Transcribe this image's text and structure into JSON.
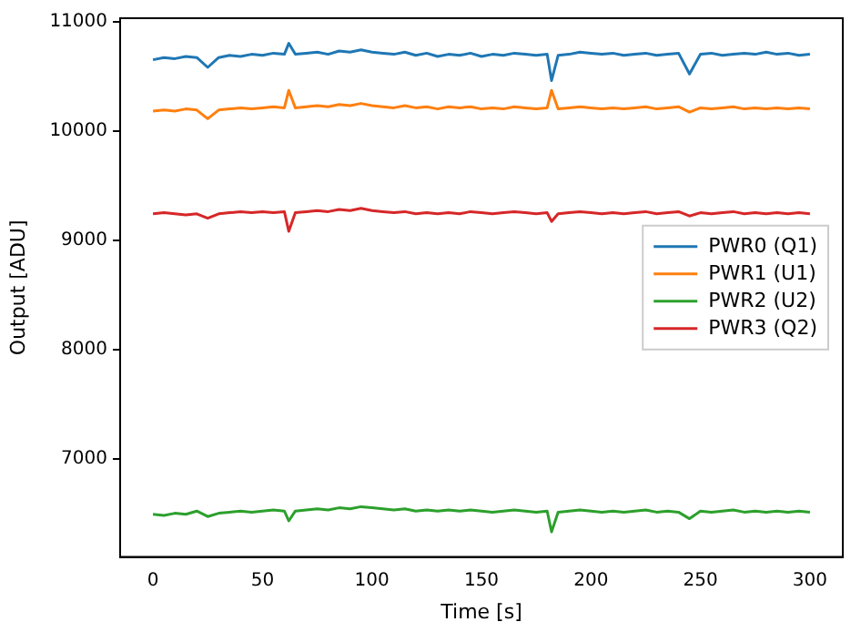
{
  "chart_data": {
    "type": "line",
    "xlabel": "Time [s]",
    "ylabel": "Output [ADU]",
    "x": [
      0,
      5,
      10,
      15,
      20,
      25,
      30,
      35,
      40,
      45,
      50,
      55,
      60,
      62,
      65,
      70,
      75,
      80,
      85,
      90,
      95,
      100,
      105,
      110,
      115,
      120,
      125,
      130,
      135,
      140,
      145,
      150,
      155,
      160,
      165,
      170,
      175,
      180,
      182,
      185,
      190,
      195,
      200,
      205,
      210,
      215,
      220,
      225,
      230,
      235,
      240,
      245,
      250,
      255,
      260,
      265,
      270,
      275,
      280,
      285,
      290,
      295,
      300
    ],
    "series": [
      {
        "name": "PWR0 (Q1)",
        "color": "#1f77b4",
        "values": [
          10650,
          10670,
          10660,
          10680,
          10670,
          10580,
          10670,
          10690,
          10680,
          10700,
          10690,
          10710,
          10700,
          10800,
          10700,
          10710,
          10720,
          10700,
          10730,
          10720,
          10740,
          10720,
          10710,
          10700,
          10720,
          10690,
          10710,
          10680,
          10700,
          10690,
          10710,
          10680,
          10700,
          10690,
          10710,
          10700,
          10690,
          10700,
          10460,
          10690,
          10700,
          10720,
          10710,
          10700,
          10710,
          10690,
          10700,
          10710,
          10690,
          10700,
          10710,
          10520,
          10700,
          10710,
          10690,
          10700,
          10710,
          10700,
          10720,
          10700,
          10710,
          10690,
          10700
        ]
      },
      {
        "name": "PWR1 (U1)",
        "color": "#ff7f0e",
        "values": [
          10180,
          10190,
          10180,
          10200,
          10190,
          10110,
          10190,
          10200,
          10210,
          10200,
          10210,
          10220,
          10210,
          10370,
          10210,
          10220,
          10230,
          10220,
          10240,
          10230,
          10250,
          10230,
          10220,
          10210,
          10230,
          10210,
          10220,
          10200,
          10220,
          10210,
          10220,
          10200,
          10210,
          10200,
          10220,
          10210,
          10200,
          10210,
          10370,
          10200,
          10210,
          10220,
          10210,
          10200,
          10210,
          10200,
          10210,
          10220,
          10200,
          10210,
          10220,
          10170,
          10210,
          10200,
          10210,
          10220,
          10200,
          10210,
          10200,
          10210,
          10200,
          10210,
          10200
        ]
      },
      {
        "name": "PWR2 (U2)",
        "color": "#2ca02c",
        "values": [
          6490,
          6480,
          6500,
          6490,
          6520,
          6470,
          6500,
          6510,
          6520,
          6510,
          6520,
          6530,
          6520,
          6430,
          6520,
          6530,
          6540,
          6530,
          6550,
          6540,
          6560,
          6550,
          6540,
          6530,
          6540,
          6520,
          6530,
          6520,
          6530,
          6520,
          6530,
          6520,
          6510,
          6520,
          6530,
          6520,
          6510,
          6520,
          6330,
          6510,
          6520,
          6530,
          6520,
          6510,
          6520,
          6510,
          6520,
          6530,
          6510,
          6520,
          6510,
          6450,
          6520,
          6510,
          6520,
          6530,
          6510,
          6520,
          6510,
          6520,
          6510,
          6520,
          6510
        ]
      },
      {
        "name": "PWR3 (Q2)",
        "color": "#d62728",
        "values": [
          9240,
          9250,
          9240,
          9230,
          9240,
          9200,
          9240,
          9250,
          9260,
          9250,
          9260,
          9250,
          9260,
          9080,
          9250,
          9260,
          9270,
          9260,
          9280,
          9270,
          9290,
          9270,
          9260,
          9250,
          9260,
          9240,
          9250,
          9240,
          9250,
          9240,
          9260,
          9250,
          9240,
          9250,
          9260,
          9250,
          9240,
          9250,
          9170,
          9240,
          9250,
          9260,
          9250,
          9240,
          9250,
          9240,
          9250,
          9260,
          9240,
          9250,
          9260,
          9220,
          9250,
          9240,
          9250,
          9260,
          9240,
          9250,
          9240,
          9250,
          9240,
          9250,
          9240
        ]
      }
    ],
    "xlim": [
      -15,
      315
    ],
    "ylim": [
      6100,
      11030
    ],
    "xticks": [
      0,
      50,
      100,
      150,
      200,
      250,
      300
    ],
    "yticks": [
      7000,
      8000,
      9000,
      10000,
      11000
    ],
    "grid": false,
    "legend": "right",
    "marker": "none",
    "line_style": "solid"
  }
}
